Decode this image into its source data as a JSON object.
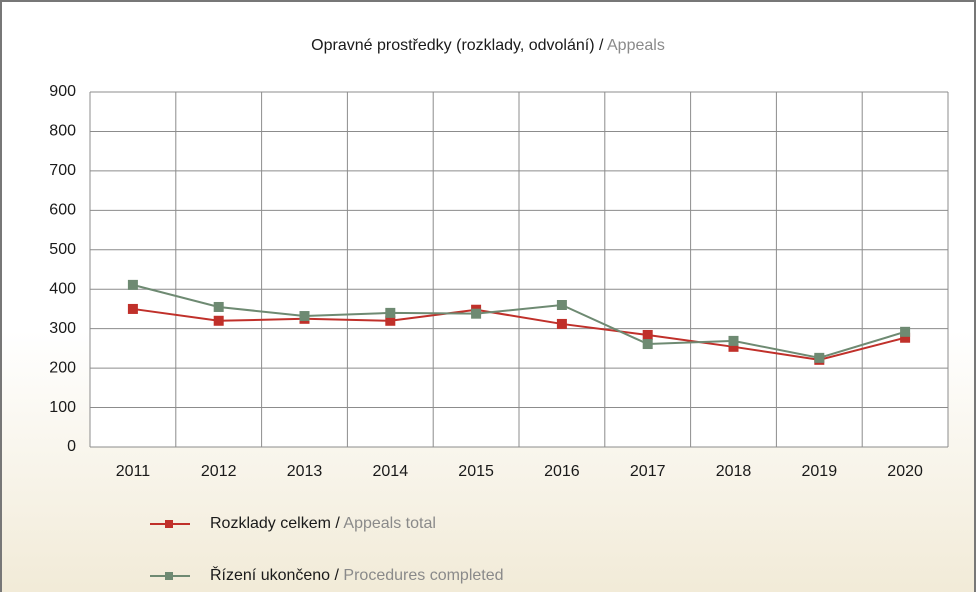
{
  "chart_data": {
    "type": "line",
    "title": "Opravné prostředky (rozklady, odvolání) /",
    "title_en": "Appeals",
    "categories": [
      "2011",
      "2012",
      "2013",
      "2014",
      "2015",
      "2016",
      "2017",
      "2018",
      "2019",
      "2020"
    ],
    "series": [
      {
        "name": "Rozklady celkem /",
        "name_en": "Appeals total",
        "color": "#c0302a",
        "values": [
          350,
          320,
          325,
          320,
          348,
          312,
          284,
          254,
          221,
          277
        ]
      },
      {
        "name": "Řízení ukončeno /",
        "name_en": "Procedures completed",
        "color": "#6e8a72",
        "values": [
          411,
          355,
          332,
          340,
          338,
          360,
          261,
          269,
          226,
          292
        ]
      }
    ],
    "ylim": [
      0,
      900
    ],
    "yticks": [
      0,
      100,
      200,
      300,
      400,
      500,
      600,
      700,
      800,
      900
    ],
    "grid": true
  }
}
